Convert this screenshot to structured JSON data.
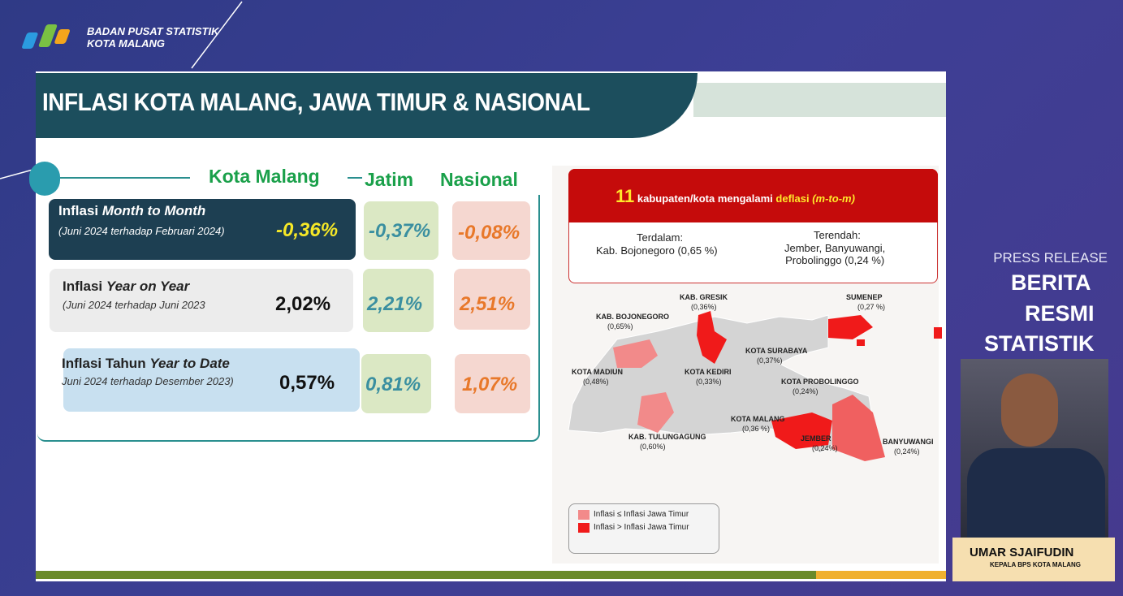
{
  "header": {
    "org_line1": "BADAN PUSAT STATISTIK",
    "org_line2": "KOTA MALANG"
  },
  "slide": {
    "title": "INFLASI KOTA MALANG, JAWA TIMUR & NASIONAL",
    "columns": [
      "Kota Malang",
      "Jatim",
      "Nasional"
    ],
    "rows": [
      {
        "label_prefix": "Inflasi",
        "label_em": "Month to Month",
        "period": "(Juni 2024 terhadap Februari 2024)",
        "values": [
          "-0,36%",
          "-0,37%",
          "-0,08%"
        ]
      },
      {
        "label_prefix": "Inflasi",
        "label_em": "Year on Year",
        "period": "(Juni 2024 terhadap Juni 2023",
        "values": [
          "2,02%",
          "2,21%",
          "2,51%"
        ]
      },
      {
        "label_prefix": "Inflasi Tahun",
        "label_em": "Year to Date",
        "period": "Juni 2024 terhadap Desember 2023)",
        "values": [
          "0,57%",
          "0,81%",
          "1,07%"
        ]
      }
    ],
    "deflation_box": {
      "count": "11",
      "text": "kabupaten/kota mengalami",
      "highlight": "deflasi",
      "mtm": "(m-to-m)",
      "deepest_title": "Terdalam:",
      "deepest": "Kab. Bojonegoro (0,65 %)",
      "lowest_title": "Terendah:",
      "lowest": [
        "Jember, Banyuwangi,",
        "Probolinggo (0,24 %)"
      ]
    },
    "map_labels": [
      {
        "name": "KAB. GRESIK",
        "value": "(0,36%)"
      },
      {
        "name": "SUMENEP",
        "value": "(0,27 %)"
      },
      {
        "name": "KAB. BOJONEGORO",
        "value": "(0,65%)"
      },
      {
        "name": "KOTA SURABAYA",
        "value": "(0,37%)"
      },
      {
        "name": "KOTA MADIUN",
        "value": "(0,48%)"
      },
      {
        "name": "KOTA KEDIRI",
        "value": "(0,33%)"
      },
      {
        "name": "KOTA PROBOLINGGO",
        "value": "(0,24%)"
      },
      {
        "name": "KOTA MALANG",
        "value": "(0,36 %)"
      },
      {
        "name": "KAB. TULUNGAGUNG",
        "value": "(0,60%)"
      },
      {
        "name": "JEMBER",
        "value": "(0,24%)"
      },
      {
        "name": "BANYUWANGI",
        "value": "(0,24%)"
      }
    ],
    "legend": [
      "Inflasi ≤ Inflasi Jawa Timur",
      "Inflasi > Inflasi Jawa Timur"
    ]
  },
  "side": {
    "press": "PRESS RELEASE",
    "brs": [
      "BERITA",
      "RESMI",
      "STATISTIK"
    ],
    "speaker_name": "UMAR SJAIFUDIN",
    "speaker_role": "KEPALA BPS KOTA MALANG"
  }
}
